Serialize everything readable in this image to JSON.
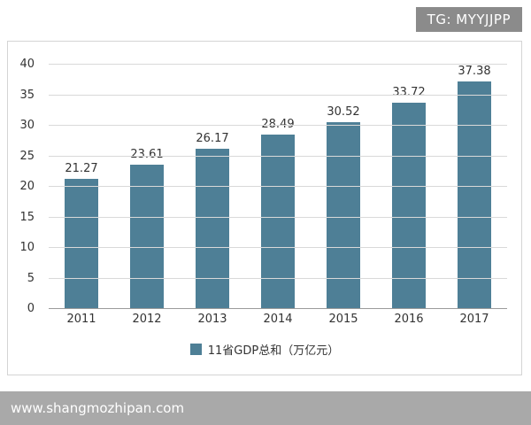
{
  "badge": {
    "text": "TG: MYYJJPP"
  },
  "footer": {
    "url": "www.shangmozhipan.com"
  },
  "chart_data": {
    "type": "bar",
    "title": "",
    "categories": [
      "2011",
      "2012",
      "2013",
      "2014",
      "2015",
      "2016",
      "2017"
    ],
    "values": [
      21.27,
      23.61,
      26.17,
      28.49,
      30.52,
      33.72,
      37.38
    ],
    "value_labels": [
      "21.27",
      "23.61",
      "26.17",
      "28.49",
      "30.52",
      "33.72",
      "37.38"
    ],
    "legend": "11省GDP总和（万亿元）",
    "xlabel": "",
    "ylabel": "",
    "ylim": [
      0,
      40
    ],
    "ytick_step": 5,
    "grid": true,
    "legend_position": "bottom",
    "bar_color": "#4E7F96"
  },
  "colors": {
    "grid": "#D9D9D9",
    "axis": "#9B9B9B",
    "text": "#333333",
    "badge_bg": "#8B8B8B",
    "footer_bg": "#A9A9A9"
  }
}
